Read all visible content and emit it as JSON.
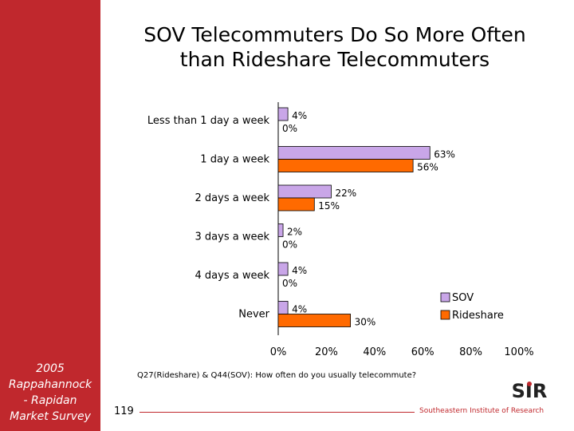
{
  "slide": {
    "title_line1": "SOV Telecommuters Do So More Often",
    "title_line2": "than Rideshare Telecommuters",
    "sidebar_text": "2005\nRappahannock\n- Rapidan\nMarket Survey",
    "question": "Q27(Rideshare) & Q44(SOV): How often do you usually telecommute?",
    "page_number": "119",
    "organization": "Southeastern Institute of Research",
    "logo": "SIR"
  },
  "colors": {
    "sidebar": "#c0282d",
    "sov": "#c9a6e8",
    "rideshare": "#ff6a00"
  },
  "chart_data": {
    "type": "bar",
    "orientation": "horizontal",
    "categories": [
      "Less than 1 day a week",
      "1 day a week",
      "2 days a week",
      "3 days a week",
      "4 days a week",
      "Never"
    ],
    "series": [
      {
        "name": "SOV",
        "values": [
          4,
          63,
          22,
          2,
          4,
          4
        ],
        "labels": [
          "4%",
          "63%",
          "22%",
          "2%",
          "4%",
          "4%"
        ]
      },
      {
        "name": "Rideshare",
        "values": [
          0,
          56,
          15,
          0,
          0,
          30
        ],
        "labels": [
          "0%",
          "56%",
          "15%",
          "0%",
          "0%",
          "30%"
        ]
      }
    ],
    "xlim": [
      0,
      100
    ],
    "xticks": [
      "0%",
      "20%",
      "40%",
      "60%",
      "80%",
      "100%"
    ],
    "grid": false,
    "legend_position": "right"
  }
}
